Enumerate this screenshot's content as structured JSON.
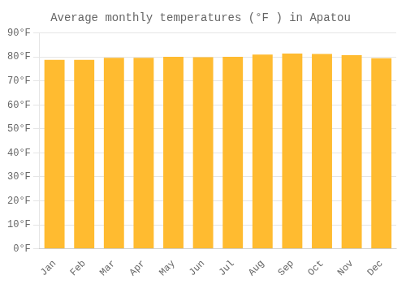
{
  "chart_data": {
    "type": "bar",
    "title": "Average monthly temperatures (°F ) in Apatou",
    "categories": [
      "Jan",
      "Feb",
      "Mar",
      "Apr",
      "May",
      "Jun",
      "Jul",
      "Aug",
      "Sep",
      "Oct",
      "Nov",
      "Dec"
    ],
    "values": [
      78.8,
      78.8,
      79.7,
      79.7,
      80.1,
      79.9,
      80.1,
      81.0,
      81.5,
      81.3,
      80.8,
      79.5
    ],
    "color": "#FFBB30",
    "ylim": [
      0,
      90
    ],
    "yticks": [
      {
        "value": 0,
        "label": "0°F"
      },
      {
        "value": 10,
        "label": "10°F"
      },
      {
        "value": 20,
        "label": "20°F"
      },
      {
        "value": 30,
        "label": "30°F"
      },
      {
        "value": 40,
        "label": "40°F"
      },
      {
        "value": 50,
        "label": "50°F"
      },
      {
        "value": 60,
        "label": "60°F"
      },
      {
        "value": 70,
        "label": "70°F"
      },
      {
        "value": 80,
        "label": "80°F"
      },
      {
        "value": 90,
        "label": "90°F"
      }
    ],
    "grid": true
  }
}
